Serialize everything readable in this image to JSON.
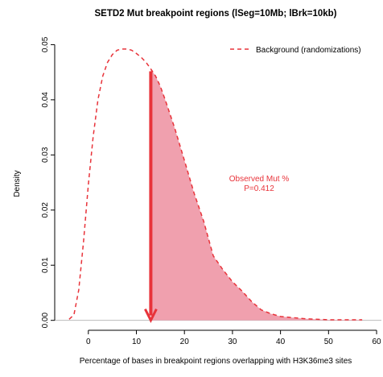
{
  "chart_data": {
    "type": "density",
    "title": "SETD2 Mut breakpoint regions (lSeg=10Mb; lBrk=10kb)",
    "xlabel": "Percentage of bases in breakpoint regions overlapping with H3K36me3 sites",
    "ylabel": "Density",
    "x": [
      -4,
      -3,
      -2,
      -1,
      0,
      1,
      2,
      3,
      4,
      5,
      6,
      7,
      8,
      9,
      10,
      11,
      12,
      13,
      14,
      15,
      16,
      18,
      20,
      22,
      24,
      26,
      28,
      30,
      32,
      34,
      36,
      38,
      40,
      45,
      50,
      57
    ],
    "series": [
      {
        "name": "Background (randomizations)",
        "color": "#e8333a",
        "values": [
          0.0002,
          0.001,
          0.0055,
          0.0143,
          0.0246,
          0.0333,
          0.04,
          0.0443,
          0.0468,
          0.0482,
          0.049,
          0.0492,
          0.0492,
          0.049,
          0.0484,
          0.0477,
          0.0468,
          0.0456,
          0.0443,
          0.0424,
          0.04,
          0.0348,
          0.029,
          0.0231,
          0.018,
          0.0117,
          0.0092,
          0.007,
          0.0053,
          0.0034,
          0.0019,
          0.0012,
          0.0007,
          0.0003,
          0.0001,
          0.0001
        ]
      }
    ],
    "observed_x": 13,
    "shade_color": "#f0a0ae",
    "annotation": [
      "Observed Mut %",
      "P=0.412"
    ],
    "xlim": [
      -7,
      61
    ],
    "ylim": [
      -0.0018,
      0.0505
    ],
    "xticks": [
      0,
      10,
      20,
      30,
      40,
      50,
      60
    ],
    "yticks": [
      {
        "value": 0,
        "label": "0.00"
      },
      0.01,
      0.02,
      0.03,
      0.04,
      0.05
    ],
    "legend": "topright"
  }
}
